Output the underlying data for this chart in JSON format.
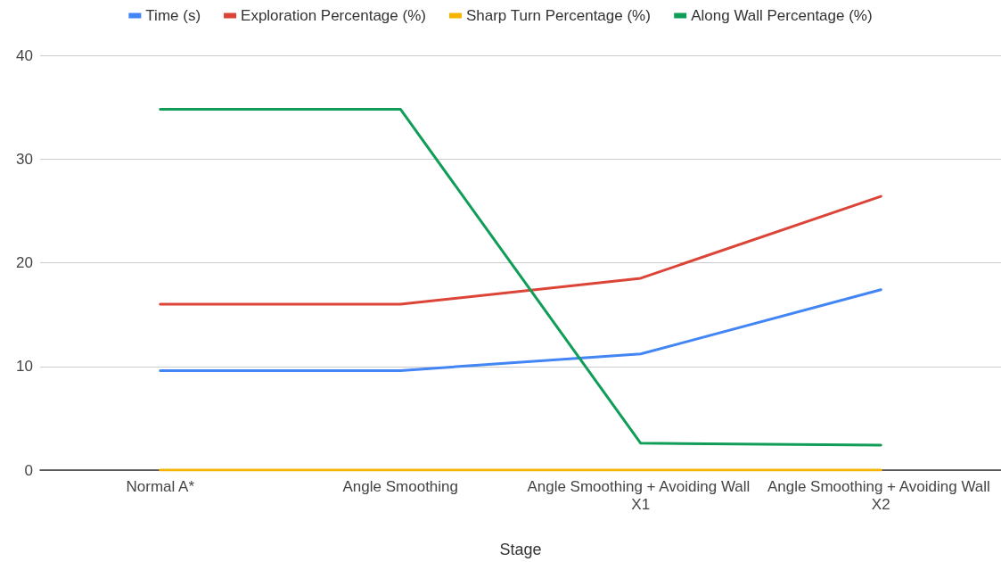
{
  "chart_data": {
    "type": "line",
    "xlabel": "Stage",
    "categories": [
      "Normal A*",
      "Angle Smoothing",
      "Angle Smoothing + Avoiding Wall X1",
      "Angle Smoothing + Avoiding Wall X2"
    ],
    "series": [
      {
        "name": "Time (s)",
        "color": "#4285f4",
        "values": [
          9.6,
          9.6,
          11.2,
          17.4
        ]
      },
      {
        "name": "Exploration Percentage (%)",
        "color": "#db4437",
        "values": [
          16.0,
          16.0,
          18.5,
          26.4
        ]
      },
      {
        "name": "Sharp Turn Percentage (%)",
        "color": "#f4b400",
        "values": [
          0,
          0,
          0,
          0
        ]
      },
      {
        "name": "Along Wall Percentage (%)",
        "color": "#0f9d58",
        "values": [
          34.8,
          34.8,
          2.6,
          2.4
        ]
      }
    ],
    "ylim": [
      0,
      40
    ],
    "yticks": [
      0,
      10,
      20,
      30,
      40
    ],
    "grid": "y",
    "legend": "top",
    "marker": "none",
    "line_style": "solid"
  }
}
